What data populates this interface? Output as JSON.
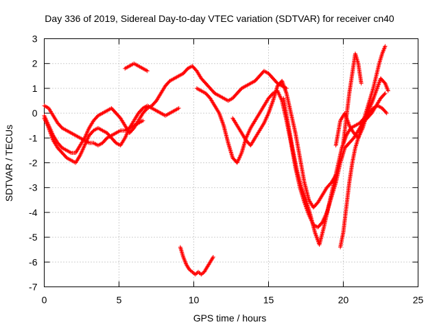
{
  "chart_data": {
    "type": "scatter",
    "title": "Day 336 of 2019, Sidereal Day-to-day VTEC variation (SDTVAR) for receiver cn40",
    "xlabel": "GPS time / hours",
    "ylabel": "SDTVAR / TECUs",
    "xlim": [
      0,
      25
    ],
    "ylim": [
      -7,
      3
    ],
    "xticks": [
      0,
      5,
      10,
      15,
      20,
      25
    ],
    "yticks": [
      -7,
      -6,
      -5,
      -4,
      -3,
      -2,
      -1,
      0,
      1,
      2,
      3
    ],
    "grid": true,
    "marker": "+",
    "color": "#ff0000",
    "series": [
      {
        "name": "trace-1",
        "x": [
          0.0,
          0.3,
          0.6,
          0.9,
          1.2,
          1.5,
          1.8,
          2.1,
          2.4,
          2.7,
          3.0,
          3.3,
          3.6,
          3.9,
          4.2,
          4.5,
          4.8,
          5.1,
          5.4,
          5.7,
          6.0,
          6.3,
          6.6,
          6.9,
          7.2,
          7.5,
          7.8,
          8.1,
          8.4,
          8.7,
          9.0,
          9.3,
          9.6,
          9.9,
          10.2,
          10.5,
          10.8,
          11.1,
          11.4,
          11.7,
          12.0,
          12.3,
          12.6,
          12.9,
          13.2,
          13.5,
          13.8,
          14.1,
          14.4,
          14.7,
          15.0,
          15.3,
          15.6,
          15.9,
          16.2
        ],
        "y": [
          -0.1,
          -0.5,
          -0.9,
          -1.2,
          -1.4,
          -1.5,
          -1.6,
          -1.6,
          -1.3,
          -1.0,
          -0.6,
          -0.3,
          -0.1,
          0.0,
          0.1,
          0.2,
          0.0,
          -0.2,
          -0.5,
          -0.8,
          -0.6,
          -0.3,
          0.0,
          0.2,
          0.3,
          0.5,
          0.8,
          1.1,
          1.3,
          1.4,
          1.5,
          1.6,
          1.8,
          1.9,
          1.7,
          1.4,
          1.2,
          1.0,
          0.8,
          0.7,
          0.6,
          0.5,
          0.6,
          0.8,
          1.0,
          1.1,
          1.2,
          1.3,
          1.5,
          1.7,
          1.6,
          1.4,
          1.2,
          1.1,
          1.0
        ]
      },
      {
        "name": "trace-2",
        "x": [
          0.0,
          0.3,
          0.6,
          0.9,
          1.2,
          1.5,
          1.8,
          2.1,
          2.4,
          2.7,
          3.0,
          3.3,
          3.6,
          3.9,
          4.2,
          4.5,
          4.8,
          5.1,
          5.4,
          5.7,
          6.0,
          6.3,
          6.6,
          6.9,
          7.2,
          7.5,
          7.8,
          8.1,
          8.4,
          8.7,
          9.0
        ],
        "y": [
          -0.2,
          -0.6,
          -1.1,
          -1.4,
          -1.6,
          -1.8,
          -1.9,
          -2.0,
          -1.7,
          -1.3,
          -0.9,
          -0.7,
          -0.6,
          -0.7,
          -0.8,
          -1.0,
          -1.2,
          -1.3,
          -1.0,
          -0.6,
          -0.3,
          0.0,
          0.2,
          0.3,
          0.2,
          0.1,
          0.0,
          -0.1,
          0.0,
          0.1,
          0.2
        ]
      },
      {
        "name": "trace-3",
        "x": [
          0.0,
          0.3,
          0.6,
          0.9,
          1.2,
          1.5,
          1.8,
          2.1,
          2.4,
          2.7,
          3.0,
          3.3,
          3.6,
          3.9,
          4.2,
          4.5,
          4.8,
          5.1,
          5.4,
          5.7,
          6.0,
          6.3,
          6.6
        ],
        "y": [
          0.3,
          0.2,
          -0.1,
          -0.4,
          -0.6,
          -0.7,
          -0.8,
          -0.9,
          -1.0,
          -1.1,
          -1.2,
          -1.2,
          -1.3,
          -1.2,
          -1.0,
          -0.9,
          -0.8,
          -0.7,
          -0.7,
          -0.6,
          -0.5,
          -0.4,
          -0.3
        ]
      },
      {
        "name": "trace-4",
        "x": [
          5.4,
          5.7,
          6.0,
          6.3,
          6.6,
          6.9
        ],
        "y": [
          1.8,
          1.9,
          2.0,
          1.9,
          1.8,
          1.7
        ]
      },
      {
        "name": "trace-5",
        "x": [
          9.1,
          9.3,
          9.5,
          9.7,
          9.9,
          10.1,
          10.3,
          10.5,
          10.7,
          10.9,
          11.1,
          11.3
        ],
        "y": [
          -5.4,
          -5.8,
          -6.1,
          -6.3,
          -6.4,
          -6.5,
          -6.4,
          -6.5,
          -6.4,
          -6.2,
          -6.0,
          -5.8
        ]
      },
      {
        "name": "trace-6",
        "x": [
          10.2,
          10.5,
          10.8,
          11.1,
          11.4,
          11.7,
          12.0,
          12.3,
          12.6,
          12.9,
          13.2,
          13.5,
          13.8,
          14.1,
          14.4,
          14.7,
          15.0,
          15.3,
          15.6,
          15.9,
          16.2,
          16.5,
          16.8,
          17.1,
          17.4,
          17.7,
          18.0,
          18.3,
          18.6,
          18.9,
          19.2,
          19.5,
          19.8,
          20.1,
          20.4,
          20.7,
          21.0,
          21.3,
          21.6,
          21.9,
          22.2,
          22.5,
          22.8
        ],
        "y": [
          1.0,
          0.9,
          0.8,
          0.6,
          0.3,
          0.0,
          -0.5,
          -1.2,
          -1.8,
          -2.0,
          -1.6,
          -1.0,
          -0.6,
          -0.3,
          0.0,
          0.3,
          0.6,
          0.8,
          0.9,
          0.5,
          -0.3,
          -1.2,
          -2.2,
          -3.0,
          -3.6,
          -4.1,
          -4.5,
          -4.6,
          -4.4,
          -4.0,
          -3.4,
          -2.8,
          -2.0,
          -1.4,
          -1.2,
          -1.0,
          -0.7,
          -0.4,
          -0.2,
          0.0,
          0.3,
          0.6,
          0.8
        ]
      },
      {
        "name": "trace-7",
        "x": [
          12.6,
          12.9,
          13.2,
          13.5,
          13.8,
          14.1,
          14.4,
          14.7,
          15.0,
          15.3,
          15.6,
          15.9,
          16.2,
          16.5,
          16.8,
          17.1,
          17.4,
          17.7,
          18.0,
          18.3,
          18.6,
          18.9,
          19.2,
          19.5
        ],
        "y": [
          -0.2,
          -0.5,
          -0.8,
          -1.1,
          -1.3,
          -1.0,
          -0.7,
          -0.4,
          0.0,
          0.5,
          1.1,
          1.3,
          0.8,
          0.0,
          -0.8,
          -1.8,
          -2.8,
          -3.5,
          -3.8,
          -3.6,
          -3.3,
          -3.0,
          -2.8,
          -2.5
        ]
      },
      {
        "name": "trace-8",
        "x": [
          16.0,
          16.3,
          16.6,
          16.9,
          17.2,
          17.5,
          17.8,
          18.1,
          18.4,
          18.7,
          19.0,
          19.3,
          19.6,
          19.9,
          20.2,
          20.5,
          20.8,
          21.1,
          21.4,
          21.7,
          22.0,
          22.3,
          22.6,
          22.9
        ],
        "y": [
          0.6,
          -0.4,
          -1.4,
          -2.3,
          -3.0,
          -3.5,
          -4.1,
          -4.8,
          -5.3,
          -4.6,
          -3.8,
          -3.0,
          -2.2,
          -1.4,
          -0.9,
          -0.6,
          -0.5,
          -0.4,
          -0.2,
          0.0,
          0.2,
          0.3,
          0.2,
          0.0
        ]
      },
      {
        "name": "trace-9",
        "x": [
          19.5,
          19.8,
          20.1,
          20.4,
          20.7,
          21.0,
          21.3,
          21.6,
          21.9,
          22.2,
          22.5,
          22.8,
          23.0
        ],
        "y": [
          -1.3,
          -0.3,
          0.0,
          -0.5,
          -0.8,
          -1.0,
          -0.6,
          0.0,
          0.4,
          0.9,
          1.4,
          1.2,
          0.9
        ]
      },
      {
        "name": "trace-10",
        "x": [
          19.8,
          20.0,
          20.2,
          20.4,
          20.6,
          20.8,
          21.0,
          21.2,
          21.4,
          21.6,
          21.8,
          22.0,
          22.2,
          22.4,
          22.6,
          22.8
        ],
        "y": [
          -5.4,
          -4.8,
          -3.8,
          -2.8,
          -2.0,
          -1.4,
          -1.0,
          -0.6,
          -0.2,
          0.2,
          0.6,
          1.0,
          1.5,
          2.0,
          2.4,
          2.7
        ]
      },
      {
        "name": "trace-11",
        "x": [
          20.0,
          20.2,
          20.4,
          20.6,
          20.8,
          21.0,
          21.2
        ],
        "y": [
          -1.2,
          -0.2,
          0.8,
          1.6,
          2.4,
          2.0,
          1.2
        ]
      }
    ]
  }
}
